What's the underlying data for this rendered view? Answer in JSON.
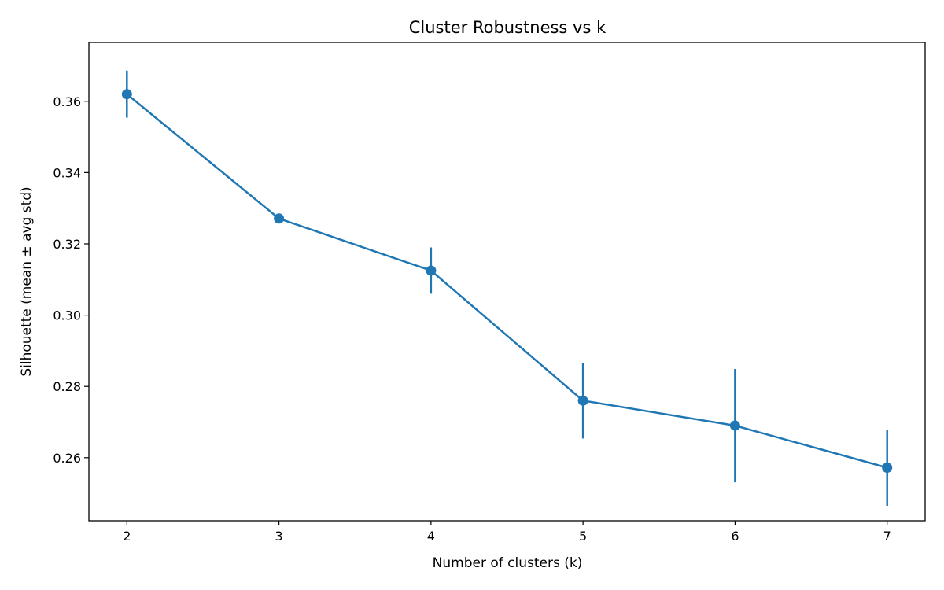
{
  "chart_data": {
    "type": "line",
    "title": "Cluster Robustness vs k",
    "xlabel": "Number of clusters (k)",
    "ylabel": "Silhouette (mean ± avg std)",
    "xlim": [
      1.75,
      7.25
    ],
    "ylim": [
      0.2423,
      0.3765
    ],
    "x_ticks": [
      2,
      3,
      4,
      5,
      6,
      7
    ],
    "y_ticks": [
      0.26,
      0.28,
      0.3,
      0.32,
      0.34,
      0.36
    ],
    "y_tick_labels": [
      "0.26",
      "0.28",
      "0.30",
      "0.32",
      "0.34",
      "0.36"
    ],
    "grid": false,
    "color": "#1f77b4",
    "series": [
      {
        "x": [
          2,
          3,
          4,
          5,
          6,
          7
        ],
        "y": [
          0.362,
          0.3271,
          0.3125,
          0.276,
          0.269,
          0.2572
        ],
        "yerr": [
          0.0066,
          0.0001,
          0.0065,
          0.0106,
          0.0159,
          0.0107
        ]
      }
    ]
  }
}
